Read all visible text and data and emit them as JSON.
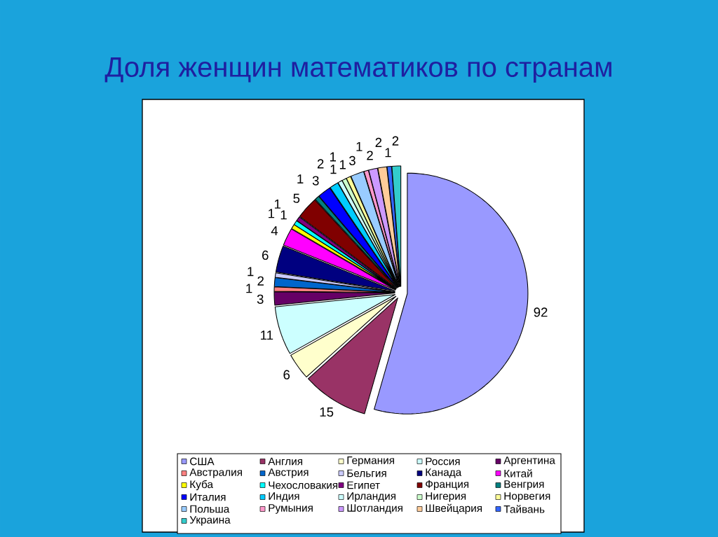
{
  "chart_data": {
    "type": "pie",
    "title": "Доля женщин математиков по странам",
    "categories": [
      "США",
      "Англия",
      "Германия",
      "Россия",
      "Аргентина",
      "Австралия",
      "Австрия",
      "Бельгия",
      "Канада",
      "Китай",
      "Куба",
      "Чехословакия",
      "Египет",
      "Франция",
      "Венгрия",
      "Италия",
      "Индия",
      "Ирландия",
      "Нигерия",
      "Норвегия",
      "Польша",
      "Румыния",
      "Шотландия",
      "Швейцария",
      "Тайвань",
      "Украина"
    ],
    "values": [
      92,
      15,
      6,
      11,
      3,
      1,
      2,
      1,
      6,
      4,
      1,
      1,
      1,
      5,
      1,
      3,
      2,
      1,
      1,
      1,
      3,
      1,
      2,
      2,
      1,
      2
    ],
    "colors": [
      "#9999ff",
      "#993366",
      "#ffffcc",
      "#ccffff",
      "#660066",
      "#ff8080",
      "#0066cc",
      "#ccccff",
      "#000080",
      "#ff00ff",
      "#ffff00",
      "#00ffff",
      "#800080",
      "#800000",
      "#008080",
      "#0000ff",
      "#00ccff",
      "#ccffff",
      "#ccffcc",
      "#ffff99",
      "#99ccff",
      "#ff99cc",
      "#cc99ff",
      "#ffcc99",
      "#3366ff",
      "#33cccc"
    ],
    "data_labels": true,
    "legend": "bottom"
  }
}
